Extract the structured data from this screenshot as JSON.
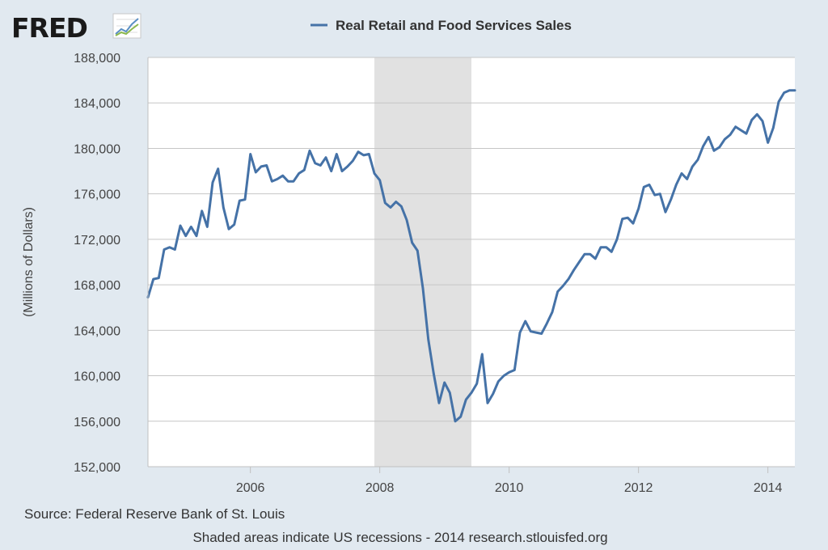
{
  "logo": {
    "text": "FRED",
    "icon": "fred-chart-icon"
  },
  "chart_data": {
    "type": "line",
    "series": [
      {
        "name": "Real Retail and Food Services Sales",
        "color": "#4572a7",
        "points": [
          [
            "2004-06",
            166900
          ],
          [
            "2004-07",
            168500
          ],
          [
            "2004-08",
            168600
          ],
          [
            "2004-09",
            171100
          ],
          [
            "2004-10",
            171300
          ],
          [
            "2004-11",
            171100
          ],
          [
            "2004-12",
            173200
          ],
          [
            "2005-01",
            172300
          ],
          [
            "2005-02",
            173100
          ],
          [
            "2005-03",
            172300
          ],
          [
            "2005-04",
            174500
          ],
          [
            "2005-05",
            173100
          ],
          [
            "2005-06",
            177000
          ],
          [
            "2005-07",
            178200
          ],
          [
            "2005-08",
            174800
          ],
          [
            "2005-09",
            172900
          ],
          [
            "2005-10",
            173300
          ],
          [
            "2005-11",
            175400
          ],
          [
            "2005-12",
            175500
          ],
          [
            "2006-01",
            179500
          ],
          [
            "2006-02",
            177900
          ],
          [
            "2006-03",
            178400
          ],
          [
            "2006-04",
            178500
          ],
          [
            "2006-05",
            177100
          ],
          [
            "2006-06",
            177300
          ],
          [
            "2006-07",
            177600
          ],
          [
            "2006-08",
            177100
          ],
          [
            "2006-09",
            177100
          ],
          [
            "2006-10",
            177800
          ],
          [
            "2006-11",
            178100
          ],
          [
            "2006-12",
            179800
          ],
          [
            "2007-01",
            178700
          ],
          [
            "2007-02",
            178500
          ],
          [
            "2007-03",
            179200
          ],
          [
            "2007-04",
            178000
          ],
          [
            "2007-05",
            179500
          ],
          [
            "2007-06",
            178000
          ],
          [
            "2007-07",
            178400
          ],
          [
            "2007-08",
            178900
          ],
          [
            "2007-09",
            179700
          ],
          [
            "2007-10",
            179400
          ],
          [
            "2007-11",
            179500
          ],
          [
            "2007-12",
            177800
          ],
          [
            "2008-01",
            177200
          ],
          [
            "2008-02",
            175200
          ],
          [
            "2008-03",
            174800
          ],
          [
            "2008-04",
            175300
          ],
          [
            "2008-05",
            174900
          ],
          [
            "2008-06",
            173700
          ],
          [
            "2008-07",
            171700
          ],
          [
            "2008-08",
            171000
          ],
          [
            "2008-09",
            167700
          ],
          [
            "2008-10",
            163200
          ],
          [
            "2008-11",
            160200
          ],
          [
            "2008-12",
            157600
          ],
          [
            "2009-01",
            159400
          ],
          [
            "2009-02",
            158500
          ],
          [
            "2009-03",
            156000
          ],
          [
            "2009-04",
            156400
          ],
          [
            "2009-05",
            157900
          ],
          [
            "2009-06",
            158500
          ],
          [
            "2009-07",
            159300
          ],
          [
            "2009-08",
            161900
          ],
          [
            "2009-09",
            157600
          ],
          [
            "2009-10",
            158400
          ],
          [
            "2009-11",
            159500
          ],
          [
            "2009-12",
            160000
          ],
          [
            "2010-01",
            160300
          ],
          [
            "2010-02",
            160500
          ],
          [
            "2010-03",
            163800
          ],
          [
            "2010-04",
            164800
          ],
          [
            "2010-05",
            163900
          ],
          [
            "2010-06",
            163800
          ],
          [
            "2010-07",
            163700
          ],
          [
            "2010-08",
            164600
          ],
          [
            "2010-09",
            165600
          ],
          [
            "2010-10",
            167400
          ],
          [
            "2010-11",
            167900
          ],
          [
            "2010-12",
            168500
          ],
          [
            "2011-01",
            169300
          ],
          [
            "2011-02",
            170000
          ],
          [
            "2011-03",
            170700
          ],
          [
            "2011-04",
            170700
          ],
          [
            "2011-05",
            170300
          ],
          [
            "2011-06",
            171300
          ],
          [
            "2011-07",
            171300
          ],
          [
            "2011-08",
            170900
          ],
          [
            "2011-09",
            172000
          ],
          [
            "2011-10",
            173800
          ],
          [
            "2011-11",
            173900
          ],
          [
            "2011-12",
            173400
          ],
          [
            "2012-01",
            174700
          ],
          [
            "2012-02",
            176600
          ],
          [
            "2012-03",
            176800
          ],
          [
            "2012-04",
            175900
          ],
          [
            "2012-05",
            176000
          ],
          [
            "2012-06",
            174400
          ],
          [
            "2012-07",
            175500
          ],
          [
            "2012-08",
            176800
          ],
          [
            "2012-09",
            177800
          ],
          [
            "2012-10",
            177300
          ],
          [
            "2012-11",
            178400
          ],
          [
            "2012-12",
            179000
          ],
          [
            "2013-01",
            180200
          ],
          [
            "2013-02",
            181000
          ],
          [
            "2013-03",
            179800
          ],
          [
            "2013-04",
            180100
          ],
          [
            "2013-05",
            180800
          ],
          [
            "2013-06",
            181200
          ],
          [
            "2013-07",
            181900
          ],
          [
            "2013-08",
            181600
          ],
          [
            "2013-09",
            181300
          ],
          [
            "2013-10",
            182500
          ],
          [
            "2013-11",
            183000
          ],
          [
            "2013-12",
            182400
          ],
          [
            "2014-01",
            180500
          ],
          [
            "2014-02",
            181800
          ],
          [
            "2014-03",
            184100
          ],
          [
            "2014-04",
            184900
          ],
          [
            "2014-05",
            185100
          ],
          [
            "2014-06",
            185100
          ]
        ]
      }
    ],
    "ylabel": "(Millions of Dollars)",
    "ylim": [
      152000,
      188000
    ],
    "yticks": [
      "152,000",
      "156,000",
      "160,000",
      "164,000",
      "168,000",
      "172,000",
      "176,000",
      "180,000",
      "184,000",
      "188,000"
    ],
    "xlim": [
      "2004-06",
      "2014-06"
    ],
    "xticks": [
      "2006",
      "2008",
      "2010",
      "2012",
      "2014"
    ],
    "recessions": [
      [
        "2007-12",
        "2009-06"
      ]
    ],
    "grid": true,
    "legend": "top-center"
  },
  "footer": {
    "source": "Source: Federal Reserve Bank of St. Louis",
    "note": "Shaded areas indicate US recessions - 2014 research.stlouisfed.org"
  }
}
